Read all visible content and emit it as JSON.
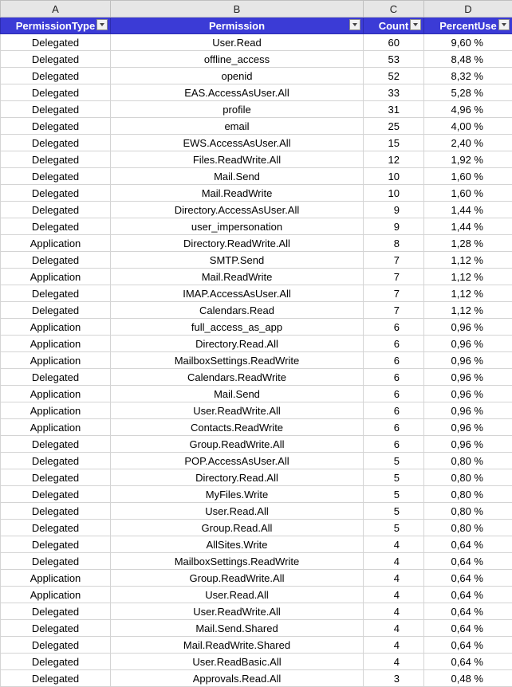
{
  "columns": [
    "A",
    "B",
    "C",
    "D"
  ],
  "headers": {
    "permission_type": "PermissionType",
    "permission": "Permission",
    "count": "Count",
    "percent_use": "PercentUse"
  },
  "rows": [
    [
      "Delegated",
      "User.Read",
      "60",
      "9,60 %"
    ],
    [
      "Delegated",
      "offline_access",
      "53",
      "8,48 %"
    ],
    [
      "Delegated",
      "openid",
      "52",
      "8,32 %"
    ],
    [
      "Delegated",
      "EAS.AccessAsUser.All",
      "33",
      "5,28 %"
    ],
    [
      "Delegated",
      "profile",
      "31",
      "4,96 %"
    ],
    [
      "Delegated",
      "email",
      "25",
      "4,00 %"
    ],
    [
      "Delegated",
      "EWS.AccessAsUser.All",
      "15",
      "2,40 %"
    ],
    [
      "Delegated",
      "Files.ReadWrite.All",
      "12",
      "1,92 %"
    ],
    [
      "Delegated",
      "Mail.Send",
      "10",
      "1,60 %"
    ],
    [
      "Delegated",
      "Mail.ReadWrite",
      "10",
      "1,60 %"
    ],
    [
      "Delegated",
      "Directory.AccessAsUser.All",
      "9",
      "1,44 %"
    ],
    [
      "Delegated",
      "user_impersonation",
      "9",
      "1,44 %"
    ],
    [
      "Application",
      "Directory.ReadWrite.All",
      "8",
      "1,28 %"
    ],
    [
      "Delegated",
      "SMTP.Send",
      "7",
      "1,12 %"
    ],
    [
      "Application",
      "Mail.ReadWrite",
      "7",
      "1,12 %"
    ],
    [
      "Delegated",
      "IMAP.AccessAsUser.All",
      "7",
      "1,12 %"
    ],
    [
      "Delegated",
      "Calendars.Read",
      "7",
      "1,12 %"
    ],
    [
      "Application",
      "full_access_as_app",
      "6",
      "0,96 %"
    ],
    [
      "Application",
      "Directory.Read.All",
      "6",
      "0,96 %"
    ],
    [
      "Application",
      "MailboxSettings.ReadWrite",
      "6",
      "0,96 %"
    ],
    [
      "Delegated",
      "Calendars.ReadWrite",
      "6",
      "0,96 %"
    ],
    [
      "Application",
      "Mail.Send",
      "6",
      "0,96 %"
    ],
    [
      "Application",
      "User.ReadWrite.All",
      "6",
      "0,96 %"
    ],
    [
      "Application",
      "Contacts.ReadWrite",
      "6",
      "0,96 %"
    ],
    [
      "Delegated",
      "Group.ReadWrite.All",
      "6",
      "0,96 %"
    ],
    [
      "Delegated",
      "POP.AccessAsUser.All",
      "5",
      "0,80 %"
    ],
    [
      "Delegated",
      "Directory.Read.All",
      "5",
      "0,80 %"
    ],
    [
      "Delegated",
      "MyFiles.Write",
      "5",
      "0,80 %"
    ],
    [
      "Delegated",
      "User.Read.All",
      "5",
      "0,80 %"
    ],
    [
      "Delegated",
      "Group.Read.All",
      "5",
      "0,80 %"
    ],
    [
      "Delegated",
      "AllSites.Write",
      "4",
      "0,64 %"
    ],
    [
      "Delegated",
      "MailboxSettings.ReadWrite",
      "4",
      "0,64 %"
    ],
    [
      "Application",
      "Group.ReadWrite.All",
      "4",
      "0,64 %"
    ],
    [
      "Application",
      "User.Read.All",
      "4",
      "0,64 %"
    ],
    [
      "Delegated",
      "User.ReadWrite.All",
      "4",
      "0,64 %"
    ],
    [
      "Delegated",
      "Mail.Send.Shared",
      "4",
      "0,64 %"
    ],
    [
      "Delegated",
      "Mail.ReadWrite.Shared",
      "4",
      "0,64 %"
    ],
    [
      "Delegated",
      "User.ReadBasic.All",
      "4",
      "0,64 %"
    ],
    [
      "Delegated",
      "Approvals.Read.All",
      "3",
      "0,48 %"
    ]
  ],
  "icons": {
    "filter": "filter-dropdown-icon"
  },
  "colors": {
    "header_bg": "#3b3bd6",
    "header_text": "#ffffff",
    "column_letter_bg": "#e6e6e6",
    "gridline": "#d4d4d4"
  }
}
